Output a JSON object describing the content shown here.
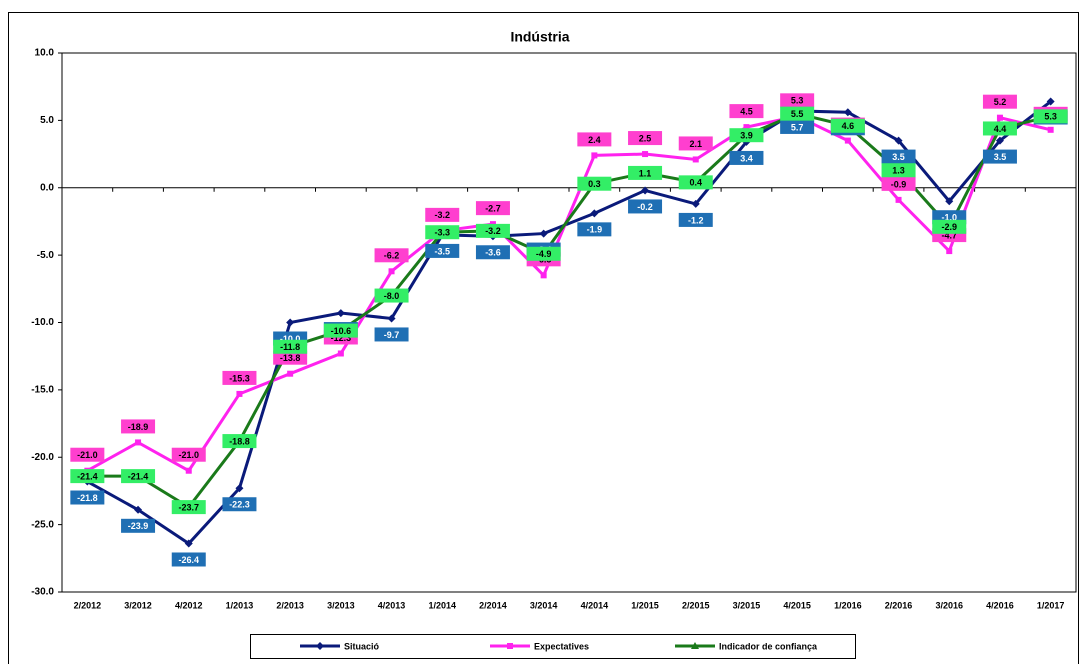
{
  "chart_data": {
    "type": "line",
    "title": "Indústria",
    "categories": [
      "2/2012",
      "3/2012",
      "4/2012",
      "1/2013",
      "2/2013",
      "3/2013",
      "4/2013",
      "1/2014",
      "2/2014",
      "3/2014",
      "4/2014",
      "1/2015",
      "2/2015",
      "3/2015",
      "4/2015",
      "1/2016",
      "2/2016",
      "3/2016",
      "4/2016",
      "1/2017"
    ],
    "series": [
      {
        "name": "Situació",
        "color": "#0a1a7a",
        "label_color": "#1f6fb4",
        "label_text": "#ffffff",
        "marker": "diamond",
        "values": [
          -21.8,
          -23.9,
          -26.4,
          -22.3,
          -10.0,
          -9.3,
          -9.7,
          -3.5,
          -3.6,
          -3.4,
          -1.9,
          -0.2,
          -1.2,
          3.4,
          5.7,
          5.6,
          3.5,
          -1.0,
          3.5,
          6.4
        ],
        "value_labels": [
          "-21.8",
          "-23.9",
          "-26.4",
          "-22.3",
          "-10.0",
          "-9.3",
          "-9.7",
          "-3.5",
          "-3.6",
          "-3.4",
          "-1.9",
          "-0.2",
          "-1.2",
          "3.4",
          "5.7",
          "5.6",
          "3.5",
          "-1.0",
          "3.5",
          "6.4"
        ]
      },
      {
        "name": "Expectatives",
        "color": "#ff22ee",
        "label_color": "#ff3fcf",
        "label_text": "#000000",
        "marker": "square",
        "values": [
          -21.0,
          -18.9,
          -21.0,
          -15.3,
          -13.8,
          -12.3,
          -6.2,
          -3.2,
          -2.7,
          -6.5,
          2.4,
          2.5,
          2.1,
          4.5,
          5.3,
          3.5,
          -0.9,
          -4.7,
          5.2,
          4.3
        ],
        "value_labels": [
          "-21.0",
          "-18.9",
          "-21.0",
          "-15.3",
          "-13.8",
          "-12.3",
          "-6.2",
          "-3.2",
          "-2.7",
          "-6.5",
          "2.4",
          "2.5",
          "2.1",
          "4.5",
          "5.3",
          "3.5",
          "-0.9",
          "-4.7",
          "5.2",
          "4.3"
        ]
      },
      {
        "name": "Indicador de confiança",
        "color": "#1a7a1a",
        "label_color": "#33ee66",
        "label_text": "#000000",
        "marker": "triangle",
        "values": [
          -21.4,
          -21.4,
          -23.7,
          -18.8,
          -11.8,
          -10.6,
          -8.0,
          -3.3,
          -3.2,
          -4.9,
          0.3,
          1.1,
          0.4,
          3.9,
          5.5,
          4.6,
          1.3,
          -2.9,
          4.4,
          5.3
        ],
        "value_labels": [
          "-21.4",
          "-21.4",
          "-23.7",
          "-18.8",
          "-11.8",
          "-10.6",
          "-8.0",
          "-3.3",
          "-3.2",
          "-4.9",
          "0.3",
          "1.1",
          "0.4",
          "3.9",
          "5.5",
          "4.6",
          "1.3",
          "-2.9",
          "4.4",
          "5.3"
        ]
      }
    ],
    "ylim": [
      -30,
      10
    ],
    "yticks": [
      {
        "value": -30,
        "label": "-30.0"
      },
      {
        "value": -25,
        "label": "-25.0"
      },
      {
        "value": -20,
        "label": "-20.0"
      },
      {
        "value": -15,
        "label": "-15.0"
      },
      {
        "value": -10,
        "label": "-10.0"
      },
      {
        "value": -5,
        "label": "-5.0"
      },
      {
        "value": 0,
        "label": "0.0"
      },
      {
        "value": 5,
        "label": "5.0"
      },
      {
        "value": 10,
        "label": "10.0"
      }
    ],
    "grid": false,
    "legend": "bottom"
  }
}
